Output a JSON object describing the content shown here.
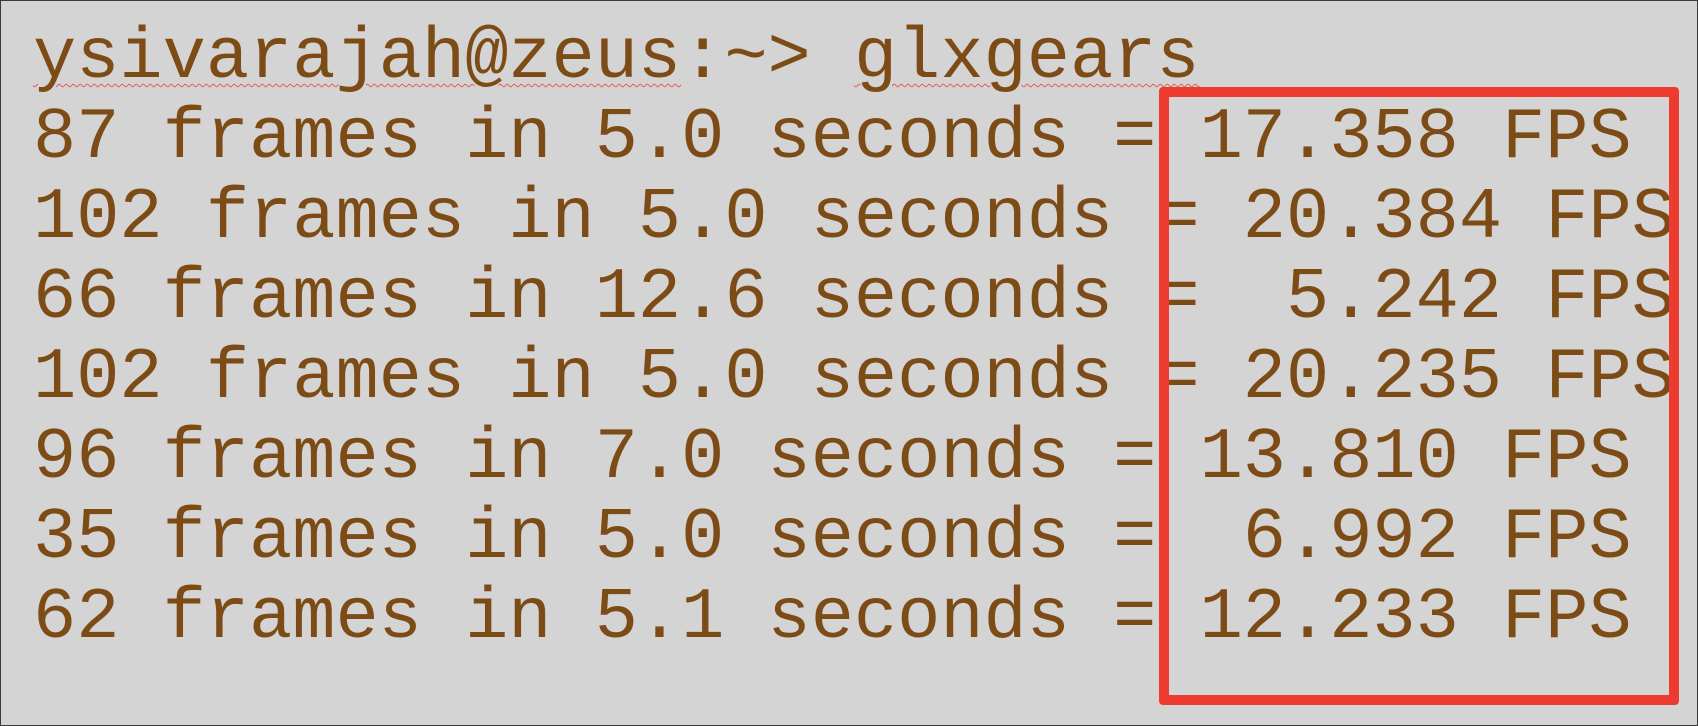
{
  "terminal": {
    "prompt": {
      "user_host": "ysivarajah@zeus",
      "path_symbol": ":~> ",
      "command": "glxgears"
    },
    "output_lines": [
      "87 frames in 5.0 seconds = 17.358 FPS",
      "102 frames in 5.0 seconds = 20.384 FPS",
      "66 frames in 12.6 seconds =  5.242 FPS",
      "102 frames in 5.0 seconds = 20.235 FPS",
      "96 frames in 7.0 seconds = 13.810 FPS",
      "35 frames in 5.0 seconds =  6.992 FPS",
      "62 frames in 5.1 seconds = 12.233 FPS"
    ]
  },
  "colors": {
    "background": "#d4d4d4",
    "text": "#7d4c16",
    "highlight_border": "#ee3b2f",
    "spellcheck_underline": "#e25a5a"
  }
}
